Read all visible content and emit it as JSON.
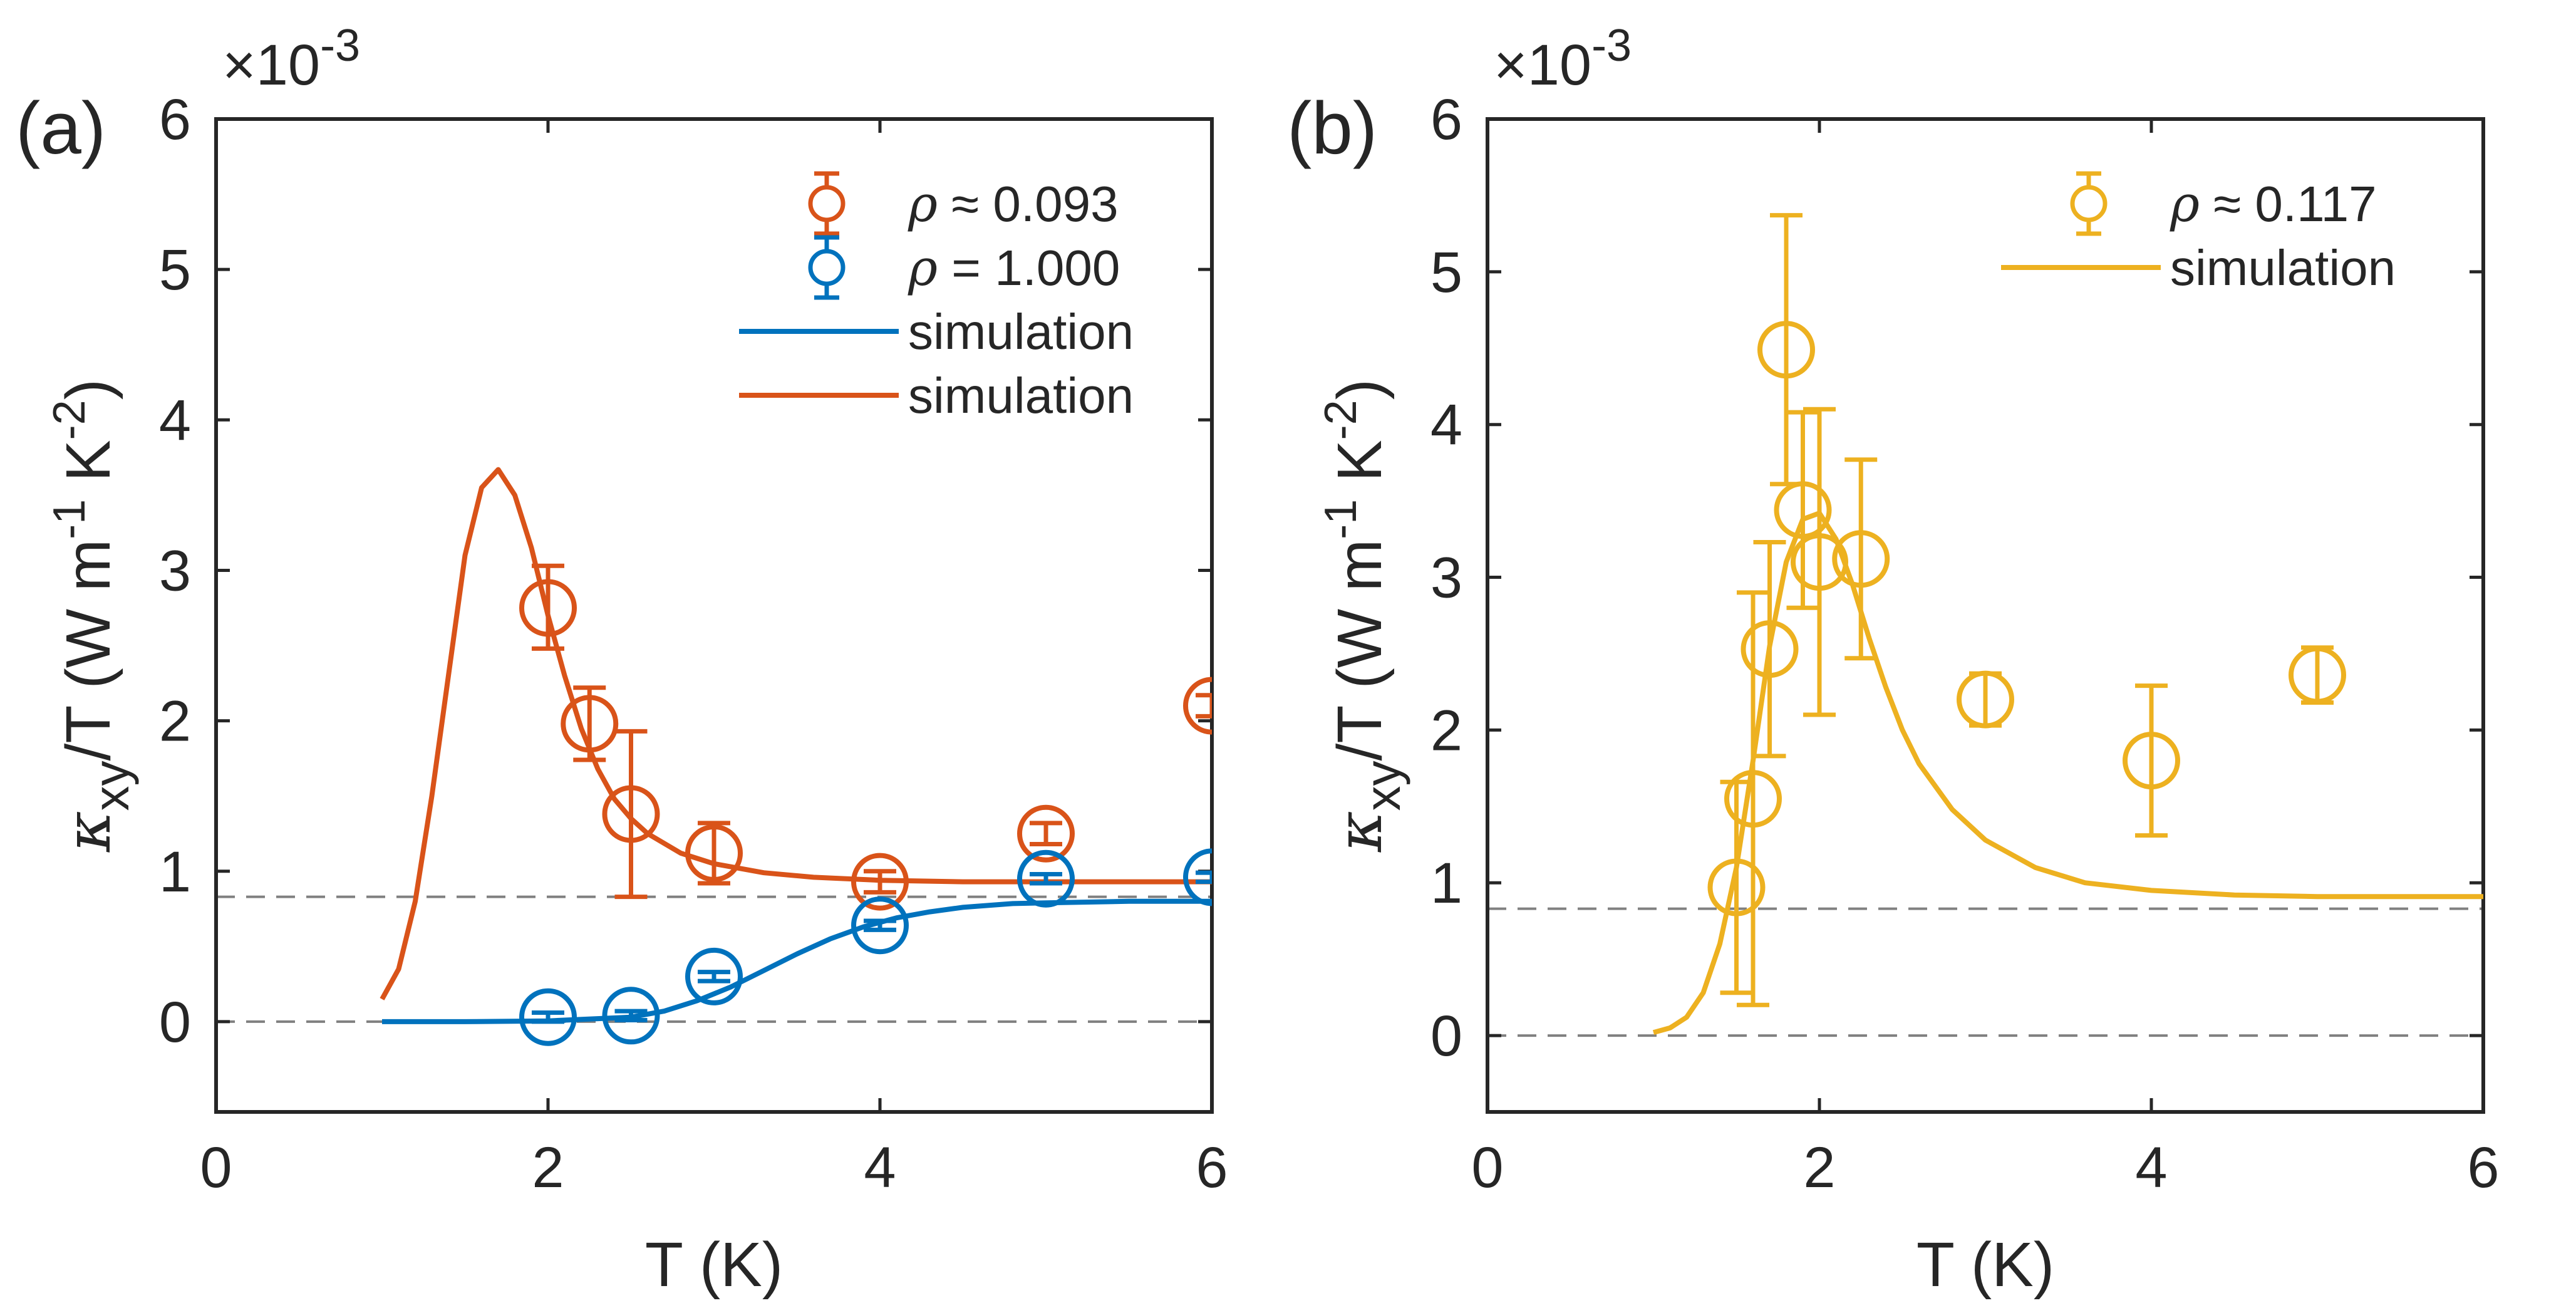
{
  "chart_data": [
    {
      "panel_label": "(a)",
      "type": "scatter",
      "xlabel": "T (K)",
      "ylabel": {
        "kappa": "κ",
        "sub": "xy",
        "main": "/T (W m",
        "sup1": "-1",
        "mid": " K",
        "sup2": "-2",
        "close": ")"
      },
      "y_multiplier": {
        "times": "×10",
        "exp": "-3"
      },
      "xlim": [
        0,
        6
      ],
      "ylim": [
        -0.6,
        6
      ],
      "xticks": [
        "0",
        "2",
        "4",
        "6"
      ],
      "yticks": [
        "0",
        "1",
        "2",
        "3",
        "4",
        "5",
        "6"
      ],
      "reference_lines": [
        0,
        0.83
      ],
      "series": [
        {
          "name": "ρ ≈ 0.093",
          "legend_symbol": "ρ",
          "legend_rest": " ≈ 0.093",
          "kind": "errorbar",
          "color": "#D95319",
          "points": [
            {
              "x": 2.0,
              "y": 2.75,
              "lo": 2.48,
              "hi": 3.03
            },
            {
              "x": 2.25,
              "y": 1.98,
              "lo": 1.74,
              "hi": 2.22
            },
            {
              "x": 2.5,
              "y": 1.38,
              "lo": 0.83,
              "hi": 1.93
            },
            {
              "x": 3.0,
              "y": 1.12,
              "lo": 0.92,
              "hi": 1.32
            },
            {
              "x": 4.0,
              "y": 0.93,
              "lo": 0.86,
              "hi": 1.0
            },
            {
              "x": 5.0,
              "y": 1.25,
              "lo": 1.18,
              "hi": 1.32
            },
            {
              "x": 6.0,
              "y": 2.1,
              "lo": 2.03,
              "hi": 2.17
            }
          ]
        },
        {
          "name": "ρ = 1.000",
          "legend_symbol": "ρ",
          "legend_rest": " = 1.000",
          "kind": "errorbar",
          "color": "#0072BD",
          "points": [
            {
              "x": 2.0,
              "y": 0.03,
              "lo": 0.0,
              "hi": 0.06
            },
            {
              "x": 2.5,
              "y": 0.04,
              "lo": 0.01,
              "hi": 0.07
            },
            {
              "x": 3.0,
              "y": 0.3,
              "lo": 0.27,
              "hi": 0.33
            },
            {
              "x": 4.0,
              "y": 0.64,
              "lo": 0.61,
              "hi": 0.67
            },
            {
              "x": 5.0,
              "y": 0.95,
              "lo": 0.92,
              "hi": 0.98
            },
            {
              "x": 6.0,
              "y": 0.96,
              "lo": 0.93,
              "hi": 0.99
            }
          ]
        },
        {
          "name": "simulation",
          "kind": "line",
          "color": "#0072BD",
          "x": [
            1.0,
            1.5,
            2.0,
            2.5,
            2.7,
            2.9,
            3.1,
            3.3,
            3.5,
            3.7,
            3.9,
            4.1,
            4.3,
            4.5,
            4.8,
            5.0,
            5.5,
            6.0
          ],
          "y": [
            0.0,
            0.0,
            0.005,
            0.03,
            0.07,
            0.14,
            0.23,
            0.34,
            0.45,
            0.55,
            0.63,
            0.69,
            0.73,
            0.76,
            0.785,
            0.79,
            0.8,
            0.8
          ]
        },
        {
          "name": "simulation",
          "kind": "line",
          "color": "#D95319",
          "x": [
            1.0,
            1.1,
            1.2,
            1.3,
            1.4,
            1.5,
            1.6,
            1.7,
            1.8,
            1.9,
            2.0,
            2.1,
            2.2,
            2.3,
            2.4,
            2.5,
            2.6,
            2.8,
            3.0,
            3.3,
            3.6,
            4.0,
            4.5,
            5.0,
            5.5,
            6.0
          ],
          "y": [
            0.15,
            0.35,
            0.8,
            1.5,
            2.3,
            3.1,
            3.55,
            3.67,
            3.5,
            3.15,
            2.7,
            2.3,
            1.95,
            1.68,
            1.48,
            1.35,
            1.25,
            1.12,
            1.05,
            0.99,
            0.96,
            0.94,
            0.93,
            0.93,
            0.93,
            0.93
          ]
        }
      ]
    },
    {
      "panel_label": "(b)",
      "type": "scatter",
      "xlabel": "T (K)",
      "ylabel": {
        "kappa": "κ",
        "sub": "xy",
        "main": "/T (W m",
        "sup1": "-1",
        "mid": " K",
        "sup2": "-2",
        "close": ")"
      },
      "y_multiplier": {
        "times": "×10",
        "exp": "-3"
      },
      "xlim": [
        0,
        6
      ],
      "ylim": [
        -0.5,
        6
      ],
      "xticks": [
        "0",
        "2",
        "4",
        "6"
      ],
      "yticks": [
        "0",
        "1",
        "2",
        "3",
        "4",
        "5",
        "6"
      ],
      "reference_lines": [
        0,
        0.83
      ],
      "series": [
        {
          "name": "ρ ≈ 0.117",
          "legend_symbol": "ρ",
          "legend_rest": " ≈ 0.117",
          "kind": "errorbar",
          "color": "#EDB120",
          "points": [
            {
              "x": 1.5,
              "y": 0.97,
              "lo": 0.28,
              "hi": 1.66
            },
            {
              "x": 1.6,
              "y": 1.55,
              "lo": 0.2,
              "hi": 2.9
            },
            {
              "x": 1.7,
              "y": 2.53,
              "lo": 1.83,
              "hi": 3.23
            },
            {
              "x": 1.8,
              "y": 4.49,
              "lo": 3.61,
              "hi": 5.37
            },
            {
              "x": 1.9,
              "y": 3.44,
              "lo": 2.8,
              "hi": 4.08
            },
            {
              "x": 2.0,
              "y": 3.1,
              "lo": 2.1,
              "hi": 4.1
            },
            {
              "x": 2.25,
              "y": 3.12,
              "lo": 2.47,
              "hi": 3.77
            },
            {
              "x": 3.0,
              "y": 2.2,
              "lo": 2.03,
              "hi": 2.37
            },
            {
              "x": 4.0,
              "y": 1.8,
              "lo": 1.31,
              "hi": 2.29
            },
            {
              "x": 5.0,
              "y": 2.36,
              "lo": 2.18,
              "hi": 2.54
            }
          ]
        },
        {
          "name": "simulation",
          "kind": "line",
          "color": "#EDB120",
          "x": [
            1.0,
            1.1,
            1.2,
            1.3,
            1.4,
            1.5,
            1.6,
            1.7,
            1.8,
            1.9,
            2.0,
            2.1,
            2.2,
            2.3,
            2.4,
            2.5,
            2.6,
            2.8,
            3.0,
            3.3,
            3.6,
            4.0,
            4.5,
            5.0,
            5.5,
            6.0
          ],
          "y": [
            0.02,
            0.05,
            0.12,
            0.28,
            0.6,
            1.1,
            1.8,
            2.55,
            3.1,
            3.38,
            3.42,
            3.25,
            2.95,
            2.6,
            2.28,
            2.0,
            1.78,
            1.48,
            1.28,
            1.1,
            1.0,
            0.95,
            0.92,
            0.91,
            0.91,
            0.91
          ]
        }
      ]
    }
  ]
}
